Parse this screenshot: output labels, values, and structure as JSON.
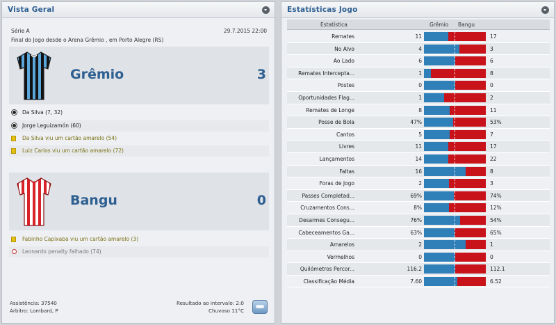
{
  "overview": {
    "title": "Vista Geral",
    "competition": "Série A",
    "date": "29.7.2015 22:00",
    "venue": "Final do Jogo desde o Arena Grêmio , em Porto Alegre (RS)",
    "home": {
      "name": "Grêmio",
      "score": "3",
      "shirt": "blue-black-striped",
      "events": [
        {
          "type": "goal",
          "text": "Da Silva (7, 32)"
        },
        {
          "type": "goal",
          "text": "Jorge Leguizamón (60)"
        },
        {
          "type": "yellow",
          "text": "Da Silva viu um cartão amarelo (54)"
        },
        {
          "type": "yellow",
          "text": "Luiz Carlos viu um cartão amarelo (72)"
        }
      ]
    },
    "away": {
      "name": "Bangu",
      "score": "0",
      "shirt": "red-white-striped",
      "events": [
        {
          "type": "yellow",
          "text": "Fabinho Capixaba viu um cartão amarelo (3)"
        },
        {
          "type": "missed-penalty",
          "text": "Leonardo penalty falhado (74)"
        }
      ]
    },
    "attendance": "Assistência: 37540",
    "referee": "Árbitro: Lombard, P",
    "halftime": "Resultado ao intervalo: 2:0",
    "weather": "Chuvoso 11°C"
  },
  "stats": {
    "title": "Estatísticas Jogo",
    "col_stat": "Estatística",
    "col_home": "Grêmio",
    "col_away": "Bangu",
    "colors": {
      "home": "#2f7fb8",
      "away": "#c8131a"
    },
    "rows": [
      {
        "label": "Remates",
        "home": "11",
        "away": "17",
        "home_share": 0.39
      },
      {
        "label": "No Alvo",
        "home": "4",
        "away": "3",
        "home_share": 0.57
      },
      {
        "label": "Ao Lado",
        "home": "6",
        "away": "6",
        "home_share": 0.5
      },
      {
        "label": "Remates Intercepta...",
        "home": "1",
        "away": "8",
        "home_share": 0.11
      },
      {
        "label": "Postes",
        "home": "0",
        "away": "0",
        "home_share": 0.5
      },
      {
        "label": "Oportunidades Flag...",
        "home": "1",
        "away": "2",
        "home_share": 0.33
      },
      {
        "label": "Remates de Longe",
        "home": "8",
        "away": "11",
        "home_share": 0.42
      },
      {
        "label": "Posse de Bola",
        "home": "47%",
        "away": "53%",
        "home_share": 0.47
      },
      {
        "label": "Cantos",
        "home": "5",
        "away": "7",
        "home_share": 0.42
      },
      {
        "label": "Livres",
        "home": "11",
        "away": "17",
        "home_share": 0.39
      },
      {
        "label": "Lançamentos",
        "home": "14",
        "away": "22",
        "home_share": 0.39
      },
      {
        "label": "Faltas",
        "home": "16",
        "away": "8",
        "home_share": 0.67
      },
      {
        "label": "Foras de Jogo",
        "home": "2",
        "away": "3",
        "home_share": 0.4
      },
      {
        "label": "Passes Completad...",
        "home": "69%",
        "away": "74%",
        "home_share": 0.48
      },
      {
        "label": "Cruzamentos Cons...",
        "home": "8%",
        "away": "12%",
        "home_share": 0.4
      },
      {
        "label": "Desarmes Consegu...",
        "home": "76%",
        "away": "54%",
        "home_share": 0.58
      },
      {
        "label": "Cabeceamentos Ga...",
        "home": "63%",
        "away": "65%",
        "home_share": 0.49
      },
      {
        "label": "Amarelos",
        "home": "2",
        "away": "1",
        "home_share": 0.67
      },
      {
        "label": "Vermelhos",
        "home": "0",
        "away": "0",
        "home_share": 0.5
      },
      {
        "label": "Quilómetros Percor...",
        "home": "116.2",
        "away": "112.1",
        "home_share": 0.51
      },
      {
        "label": "Classificação Média",
        "home": "7.60",
        "away": "6.52",
        "home_share": 0.54
      }
    ]
  }
}
